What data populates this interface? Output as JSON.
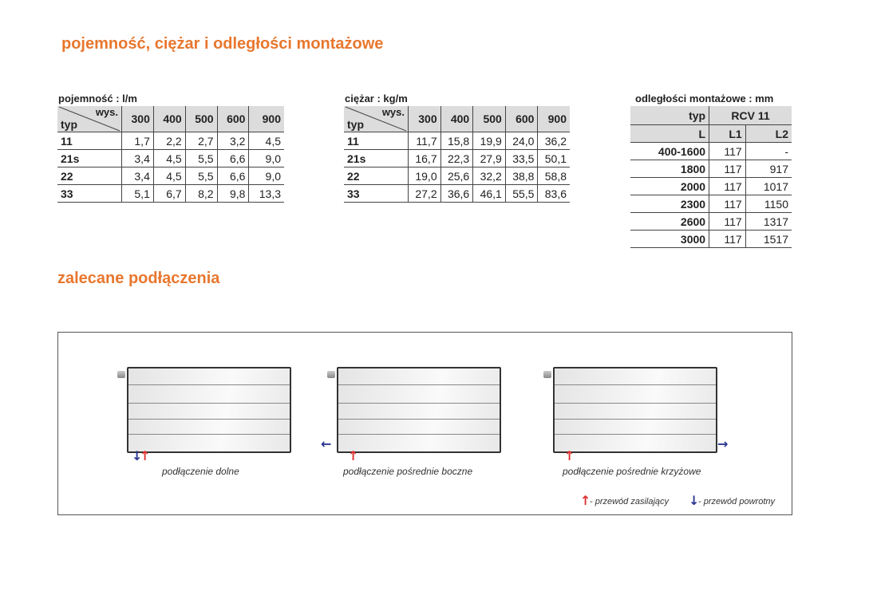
{
  "title1": "pojemność, ciężar i odległości montażowe",
  "title2": "zalecane podłączenia",
  "capacity": {
    "label": "pojemność : l/m",
    "corner_top": "wys.",
    "corner_bottom": "typ",
    "cols": [
      "300",
      "400",
      "500",
      "600",
      "900"
    ],
    "rows": [
      [
        "11",
        "1,7",
        "2,2",
        "2,7",
        "3,2",
        "4,5"
      ],
      [
        "21s",
        "3,4",
        "4,5",
        "5,5",
        "6,6",
        "9,0"
      ],
      [
        "22",
        "3,4",
        "4,5",
        "5,5",
        "6,6",
        "9,0"
      ],
      [
        "33",
        "5,1",
        "6,7",
        "8,2",
        "9,8",
        "13,3"
      ]
    ]
  },
  "weight": {
    "label": "ciężar : kg/m",
    "corner_top": "wys.",
    "corner_bottom": "typ",
    "cols": [
      "300",
      "400",
      "500",
      "600",
      "900"
    ],
    "rows": [
      [
        "11",
        "11,7",
        "15,8",
        "19,9",
        "24,0",
        "36,2"
      ],
      [
        "21s",
        "16,7",
        "22,3",
        "27,9",
        "33,5",
        "50,1"
      ],
      [
        "22",
        "19,0",
        "25,6",
        "32,2",
        "38,8",
        "58,8"
      ],
      [
        "33",
        "27,2",
        "36,6",
        "46,1",
        "55,5",
        "83,6"
      ]
    ]
  },
  "distances": {
    "label": "odległości montażowe : mm",
    "typ": "typ",
    "model": "RCV 11",
    "L": "L",
    "L1": "L1",
    "L2": "L2",
    "rows": [
      [
        "400-1600",
        "117",
        "-"
      ],
      [
        "1800",
        "117",
        "917"
      ],
      [
        "2000",
        "117",
        "1017"
      ],
      [
        "2300",
        "117",
        "1150"
      ],
      [
        "2600",
        "117",
        "1317"
      ],
      [
        "3000",
        "117",
        "1517"
      ]
    ]
  },
  "connections": {
    "captions": [
      "podłączenie dolne",
      "podłączenie pośrednie boczne",
      "podłączenie pośrednie krzyżowe"
    ],
    "legend_supply": "- przewód zasilający",
    "legend_return": "- przewód powrotny",
    "supply_color": "#e03030",
    "return_color": "#2a3590"
  },
  "accent": "#e8772e"
}
